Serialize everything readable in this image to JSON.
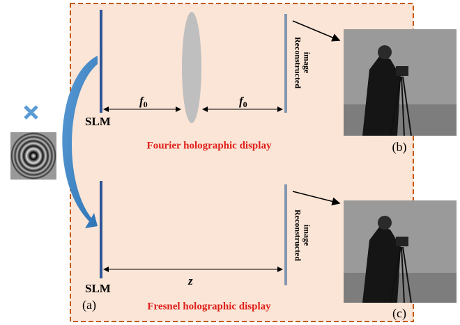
{
  "fourier": {
    "slm_label": "SLM",
    "distance_1": {
      "symbol": "f",
      "subscript": "0"
    },
    "distance_2": {
      "symbol": "f",
      "subscript": "0"
    },
    "screen_label": [
      "Reconstructed",
      "image"
    ],
    "title": "Fourier holographic display",
    "image_caption": "(b)"
  },
  "fresnel": {
    "slm_label": "SLM",
    "distance": "z",
    "screen_label": [
      "Reconstructed",
      "image"
    ],
    "title": "Fresnel holographic display",
    "image_caption": "(c)"
  },
  "panel_label": "(a)"
}
